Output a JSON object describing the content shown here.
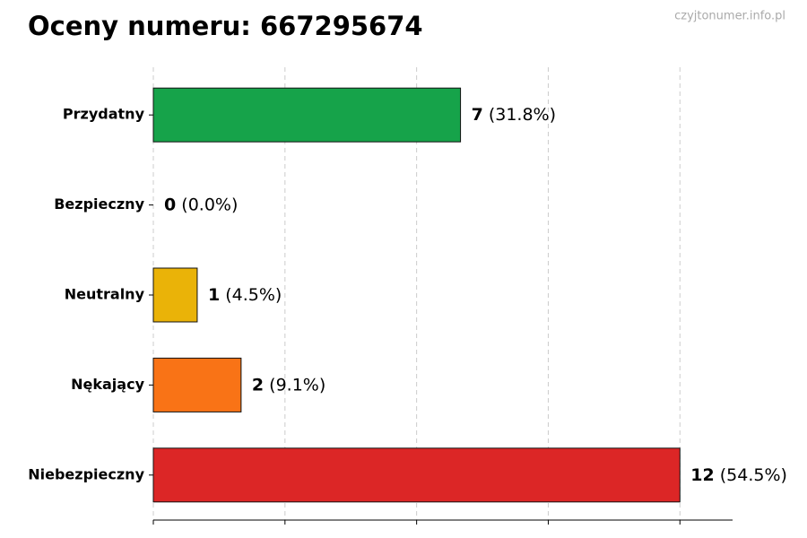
{
  "chart_data": {
    "type": "barh",
    "title": "Oceny numeru: 667295674",
    "watermark": "czyjtonumer.info.pl",
    "categories": [
      "Przydatny",
      "Bezpieczny",
      "Neutralny",
      "Nękający",
      "Niebezpieczny"
    ],
    "values": [
      7,
      0,
      1,
      2,
      12
    ],
    "percent_labels": [
      "(31.8%)",
      "(0.0%)",
      "(4.5%)",
      "(9.1%)",
      "(54.5%)"
    ],
    "colors": [
      "#16a34a",
      "#3b82f6",
      "#eab308",
      "#f97316",
      "#dc2626"
    ],
    "xlim": [
      0,
      13.2
    ],
    "xticks": [
      0,
      3,
      6,
      9,
      12
    ],
    "grid": true
  }
}
